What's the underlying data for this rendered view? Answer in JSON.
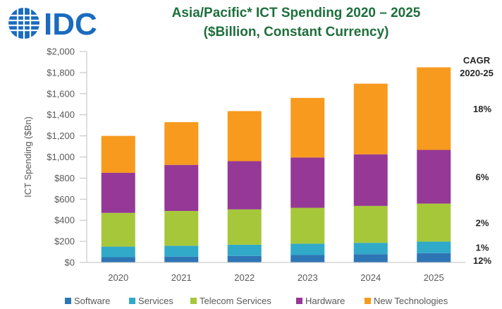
{
  "logo": {
    "text": "IDC",
    "color": "#1a6bbf"
  },
  "chart_data": {
    "type": "bar",
    "stacked": true,
    "title": "Asia/Pacific* ICT Spending 2020 – 2025",
    "subtitle": "($Billion, Constant Currency)",
    "xlabel": "",
    "ylabel": "ICT Spending ($Bn)",
    "ylim": [
      0,
      2000
    ],
    "yticks": [
      "$0",
      "$200",
      "$400",
      "$600",
      "$800",
      "$1,000",
      "$1,200",
      "$1,400",
      "$1,600",
      "$1,800",
      "$2,000"
    ],
    "ytick_values": [
      0,
      200,
      400,
      600,
      800,
      1000,
      1200,
      1400,
      1600,
      1800,
      2000
    ],
    "grid": false,
    "legend_position": "bottom",
    "categories": [
      "2020",
      "2021",
      "2022",
      "2023",
      "2024",
      "2025"
    ],
    "series": [
      {
        "name": "Software",
        "color": "#2e75b6",
        "values": [
          50,
          55,
          62,
          70,
          78,
          88
        ]
      },
      {
        "name": "Services",
        "color": "#31a9c9",
        "values": [
          100,
          103,
          106,
          108,
          108,
          110
        ]
      },
      {
        "name": "Telecom Services",
        "color": "#a6c73a",
        "values": [
          320,
          330,
          335,
          340,
          350,
          360
        ]
      },
      {
        "name": "Hardware",
        "color": "#953896",
        "values": [
          380,
          437,
          457,
          477,
          489,
          509
        ]
      },
      {
        "name": "New Technologies",
        "color": "#f79a1e",
        "values": [
          350,
          405,
          475,
          565,
          670,
          783
        ]
      }
    ],
    "cagr": {
      "title_line1": "CAGR",
      "title_line2": "2020-25",
      "values": [
        "12%",
        "1%",
        "2%",
        "6%",
        "18%"
      ]
    }
  }
}
